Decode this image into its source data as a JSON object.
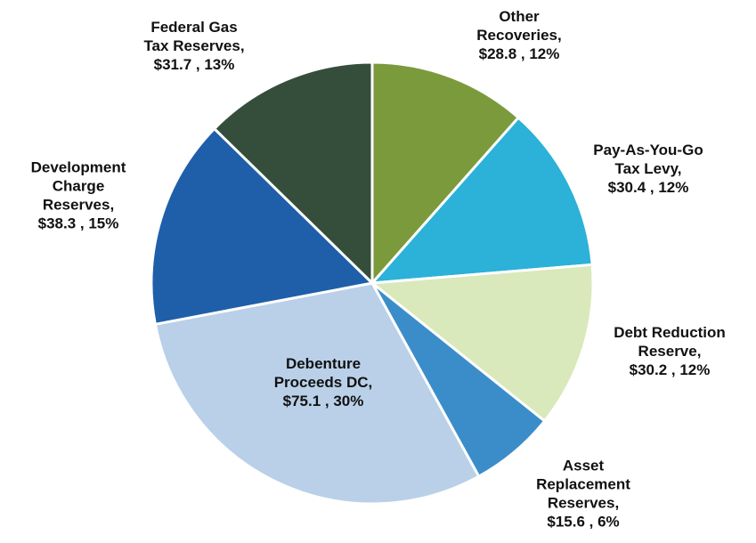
{
  "chart_data": {
    "type": "pie",
    "categories": [
      "Other\nRecoveries,",
      "Pay-As-You-Go\nTax Levy,",
      "Debt Reduction\nReserve,",
      "Asset\nReplacement\nReserves,",
      "Debenture\nProceeds DC,",
      "Development\nCharge\nReserves,",
      "Federal Gas\nTax Reserves,"
    ],
    "values": [
      28.8,
      30.4,
      30.2,
      15.6,
      75.1,
      38.3,
      31.7
    ],
    "value_labels": [
      "$28.8 , 12%",
      "$30.4 , 12%",
      "$30.2 , 12%",
      "$15.6 , 6%",
      "$75.1 , 30%",
      "$38.3 , 15%",
      "$31.7 , 13%"
    ],
    "colors": [
      "#7b9a3c",
      "#2cb1d8",
      "#d9e9bb",
      "#3b8dca",
      "#b9d0e8",
      "#1f5fa9",
      "#354e3b"
    ]
  }
}
